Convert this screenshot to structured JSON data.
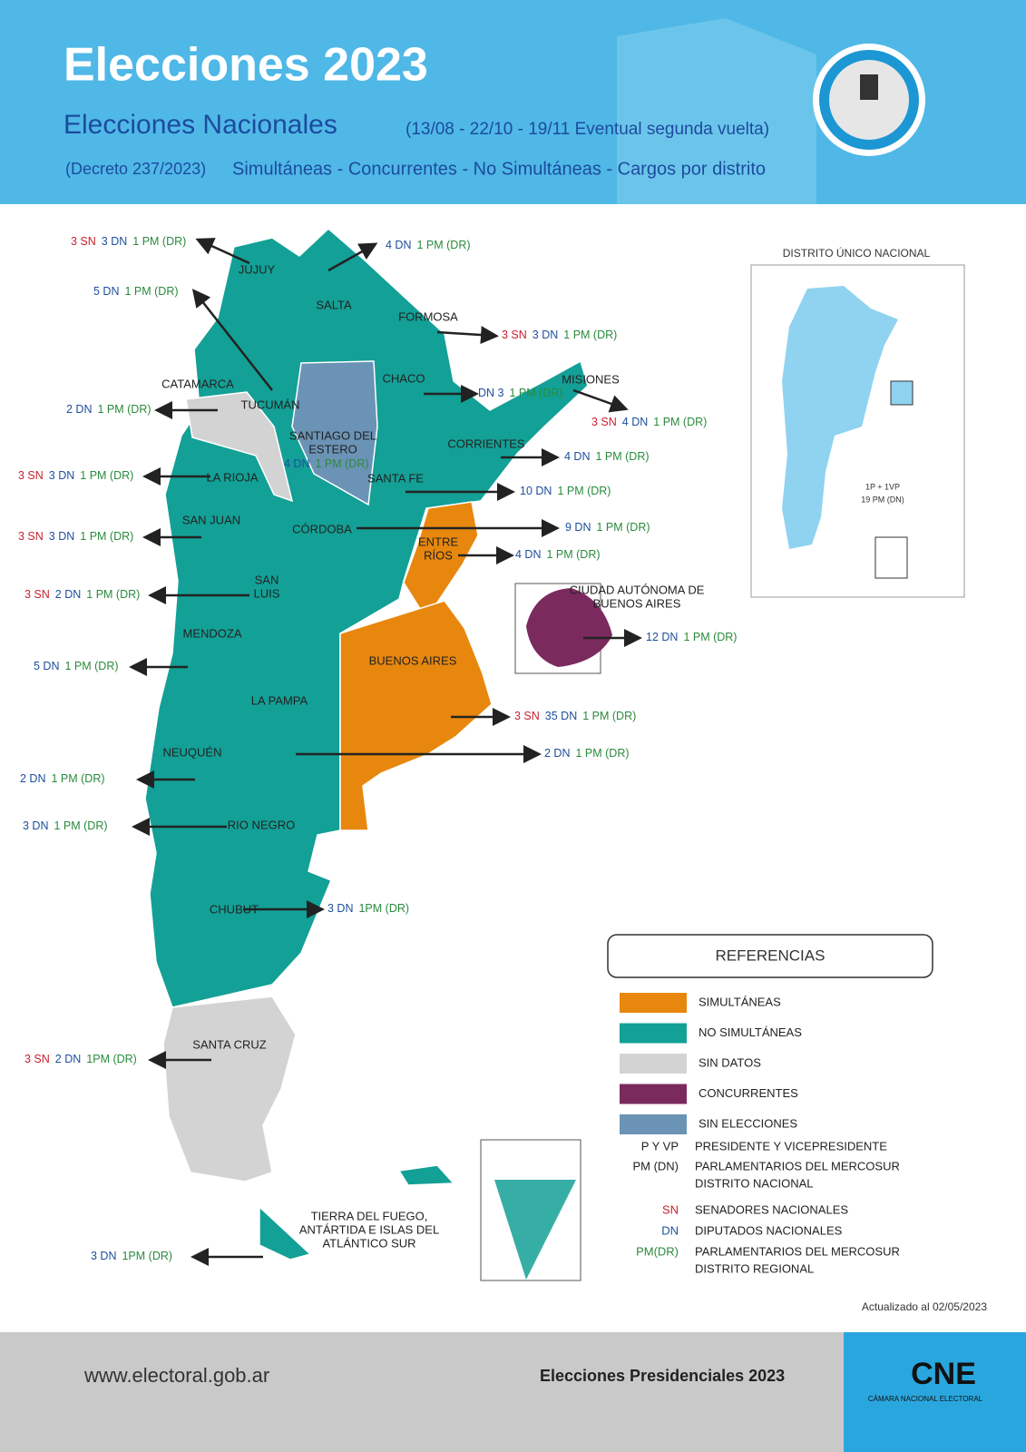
{
  "header": {
    "title": "Elecciones 2023",
    "subtitle": "Elecciones Nacionales",
    "dates": "(13/08 - 22/10 - 19/11 Eventual segunda vuelta)",
    "decree": "(Decreto 237/2023)",
    "types": "Simultáneas  - Concurrentes - No Simultáneas - Cargos por distrito"
  },
  "provinces": [
    {
      "name": [
        "JUJUY"
      ],
      "seats": {
        "sn": "3 SN",
        "dn": "3 DN",
        "pm": "1 PM (DR)"
      }
    },
    {
      "name": [
        "SALTA"
      ],
      "seats": {
        "dn": "4 DN",
        "pm": "1 PM (DR)"
      }
    },
    {
      "name": [
        "TUCUMÁN"
      ],
      "seats": {
        "dn": "5 DN",
        "pm": "1 PM (DR)"
      }
    },
    {
      "name": [
        "FORMOSA"
      ],
      "seats": {
        "sn": "3 SN",
        "dn": "3 DN",
        "pm": "1 PM (DR)"
      }
    },
    {
      "name": [
        "CATAMARCA"
      ],
      "seats": {
        "dn": "2 DN",
        "pm": "1 PM (DR)"
      }
    },
    {
      "name": [
        "CHACO"
      ],
      "seats": {
        "dn": "DN 3",
        "pm": "1 PM (DR)"
      }
    },
    {
      "name": [
        "MISIONES"
      ],
      "seats": {
        "sn": "3 SN",
        "dn": "4 DN",
        "pm": "1 PM (DR)"
      }
    },
    {
      "name": [
        "SANTIAGO DEL",
        "ESTERO"
      ],
      "seats": {
        "dn": "4 DN",
        "pm": "1 PM (DR)"
      }
    },
    {
      "name": [
        "CORRIENTES"
      ],
      "seats": {
        "dn": "4 DN",
        "pm": "1 PM (DR)"
      }
    },
    {
      "name": [
        "LA RIOJA"
      ],
      "seats": {
        "sn": "3 SN",
        "dn": "3 DN",
        "pm": "1 PM (DR)"
      }
    },
    {
      "name": [
        "SANTA FE"
      ],
      "seats": {
        "dn": "10 DN",
        "pm": "1 PM (DR)"
      }
    },
    {
      "name": [
        "SAN JUAN"
      ],
      "seats": {
        "sn": "3 SN",
        "dn": "3 DN",
        "pm": "1 PM (DR)"
      }
    },
    {
      "name": [
        "CÓRDOBA"
      ],
      "seats": {
        "dn": "9 DN",
        "pm": "1 PM (DR)"
      }
    },
    {
      "name": [
        "ENTRE",
        "RÍOS"
      ],
      "seats": {
        "dn": "4 DN",
        "pm": "1 PM (DR)"
      }
    },
    {
      "name": [
        "SAN",
        "LUIS"
      ],
      "seats": {
        "sn": "3 SN",
        "dn": "2 DN",
        "pm": "1 PM (DR)"
      }
    },
    {
      "name": [
        "CIUDAD AUTÓNOMA DE",
        "BUENOS AIRES"
      ],
      "seats": {
        "dn": "12 DN",
        "pm": "1 PM (DR)"
      }
    },
    {
      "name": [
        "MENDOZA"
      ],
      "seats": {
        "dn": "5 DN",
        "pm": "1 PM (DR)"
      }
    },
    {
      "name": [
        "BUENOS AIRES"
      ],
      "seats": {
        "sn": "3 SN",
        "dn": "35 DN",
        "pm": "1 PM (DR)"
      }
    },
    {
      "name": [
        "LA PAMPA"
      ],
      "seats": {
        "dn": "2 DN",
        "pm": "1 PM (DR)"
      }
    },
    {
      "name": [
        "NEUQUÉN"
      ],
      "seats": {
        "dn": "2 DN",
        "pm": "1 PM (DR)"
      }
    },
    {
      "name": [
        "RIO NEGRO"
      ],
      "seats": {
        "dn": "3 DN",
        "pm": "1 PM (DR)"
      }
    },
    {
      "name": [
        "CHUBUT"
      ],
      "seats": {
        "dn": "3 DN",
        "pm": "1PM (DR)"
      }
    },
    {
      "name": [
        "SANTA CRUZ"
      ],
      "seats": {
        "sn": "3 SN",
        "dn": "2 DN",
        "pm": "1PM (DR)"
      }
    },
    {
      "name": [
        "TIERRA DEL FUEGO,",
        "ANTÁRTIDA E ISLAS DEL",
        "ATLÁNTICO SUR"
      ],
      "seats": {
        "dn": "3 DN",
        "pm": "1PM (DR)"
      }
    }
  ],
  "inset": {
    "title": "DISTRITO ÚNICO NACIONAL",
    "lines": [
      "1P + 1VP",
      "19 PM (DN)"
    ]
  },
  "legend": {
    "title": "REFERENCIAS",
    "items": [
      {
        "label": "SIMULTÁNEAS",
        "color": "#e8870e"
      },
      {
        "label": "NO SIMULTÁNEAS",
        "color": "#13a096"
      },
      {
        "label": "SIN DATOS",
        "color": "#d3d3d3"
      },
      {
        "label": "CONCURRENTES",
        "color": "#7b2a5e"
      },
      {
        "label": "SIN ELECCIONES",
        "color": "#6b93b5"
      }
    ],
    "abbreviations": [
      {
        "abbr": "P Y VP",
        "desc": [
          "PRESIDENTE Y VICEPRESIDENTE"
        ]
      },
      {
        "abbr": "PM (DN)",
        "desc": [
          "PARLAMENTARIOS DEL MERCOSUR",
          "DISTRITO NACIONAL"
        ]
      },
      {
        "abbr": "SN",
        "desc": [
          "SENADORES NACIONALES"
        ]
      },
      {
        "abbr": "DN",
        "desc": [
          "DIPUTADOS NACIONALES"
        ]
      },
      {
        "abbr": "PM(DR)",
        "desc": [
          "PARLAMENTARIOS DEL MERCOSUR",
          "DISTRITO REGIONAL"
        ]
      }
    ]
  },
  "updated": "Actualizado al 02/05/2023",
  "footer": {
    "url": "www.electoral.gob.ar",
    "caption": "Elecciones Presidenciales 2023",
    "logo": "CNE",
    "logo_sub": "CÁMARA NACIONAL ELECTORAL"
  }
}
